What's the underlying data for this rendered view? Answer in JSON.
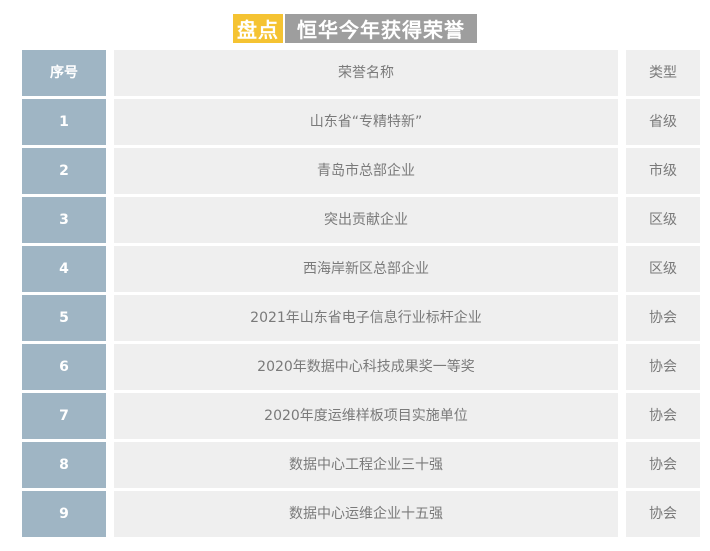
{
  "title": {
    "badge": "盘点",
    "text": "恒华今年获得荣誉"
  },
  "table": {
    "headers": {
      "no": "序号",
      "name": "荣誉名称",
      "type": "类型"
    },
    "rows": [
      {
        "no": "1",
        "name": "山东省“专精特新”",
        "type": "省级"
      },
      {
        "no": "2",
        "name": "青岛市总部企业",
        "type": "市级"
      },
      {
        "no": "3",
        "name": "突出贡献企业",
        "type": "区级"
      },
      {
        "no": "4",
        "name": "西海岸新区总部企业",
        "type": "区级"
      },
      {
        "no": "5",
        "name": "2021年山东省电子信息行业标杆企业",
        "type": "协会"
      },
      {
        "no": "6",
        "name": "2020年数据中心科技成果奖一等奖",
        "type": "协会"
      },
      {
        "no": "7",
        "name": "2020年度运维样板项目实施单位",
        "type": "协会"
      },
      {
        "no": "8",
        "name": "数据中心工程企业三十强",
        "type": "协会"
      },
      {
        "no": "9",
        "name": "数据中心运维企业十五强",
        "type": "协会"
      }
    ]
  },
  "colors": {
    "badge_yellow": "#F5C332",
    "title_gray": "#9E9E9E",
    "index_blue": "#9FB5C4",
    "row_bg": "#EFEFEF",
    "cell_text": "#7A7A7A",
    "index_text": "#FFFFFF"
  },
  "chart_data": {
    "type": "table",
    "title": "盘点 恒华今年获得荣誉",
    "columns": [
      "序号",
      "荣誉名称",
      "类型"
    ],
    "rows": [
      [
        "1",
        "山东省“专精特新”",
        "省级"
      ],
      [
        "2",
        "青岛市总部企业",
        "市级"
      ],
      [
        "3",
        "突出贡献企业",
        "区级"
      ],
      [
        "4",
        "西海岸新区总部企业",
        "区级"
      ],
      [
        "5",
        "2021年山东省电子信息行业标杆企业",
        "协会"
      ],
      [
        "6",
        "2020年数据中心科技成果奖一等奖",
        "协会"
      ],
      [
        "7",
        "2020年度运维样板项目实施单位",
        "协会"
      ],
      [
        "8",
        "数据中心工程企业三十强",
        "协会"
      ],
      [
        "9",
        "数据中心运维企业十五强",
        "协会"
      ]
    ]
  }
}
